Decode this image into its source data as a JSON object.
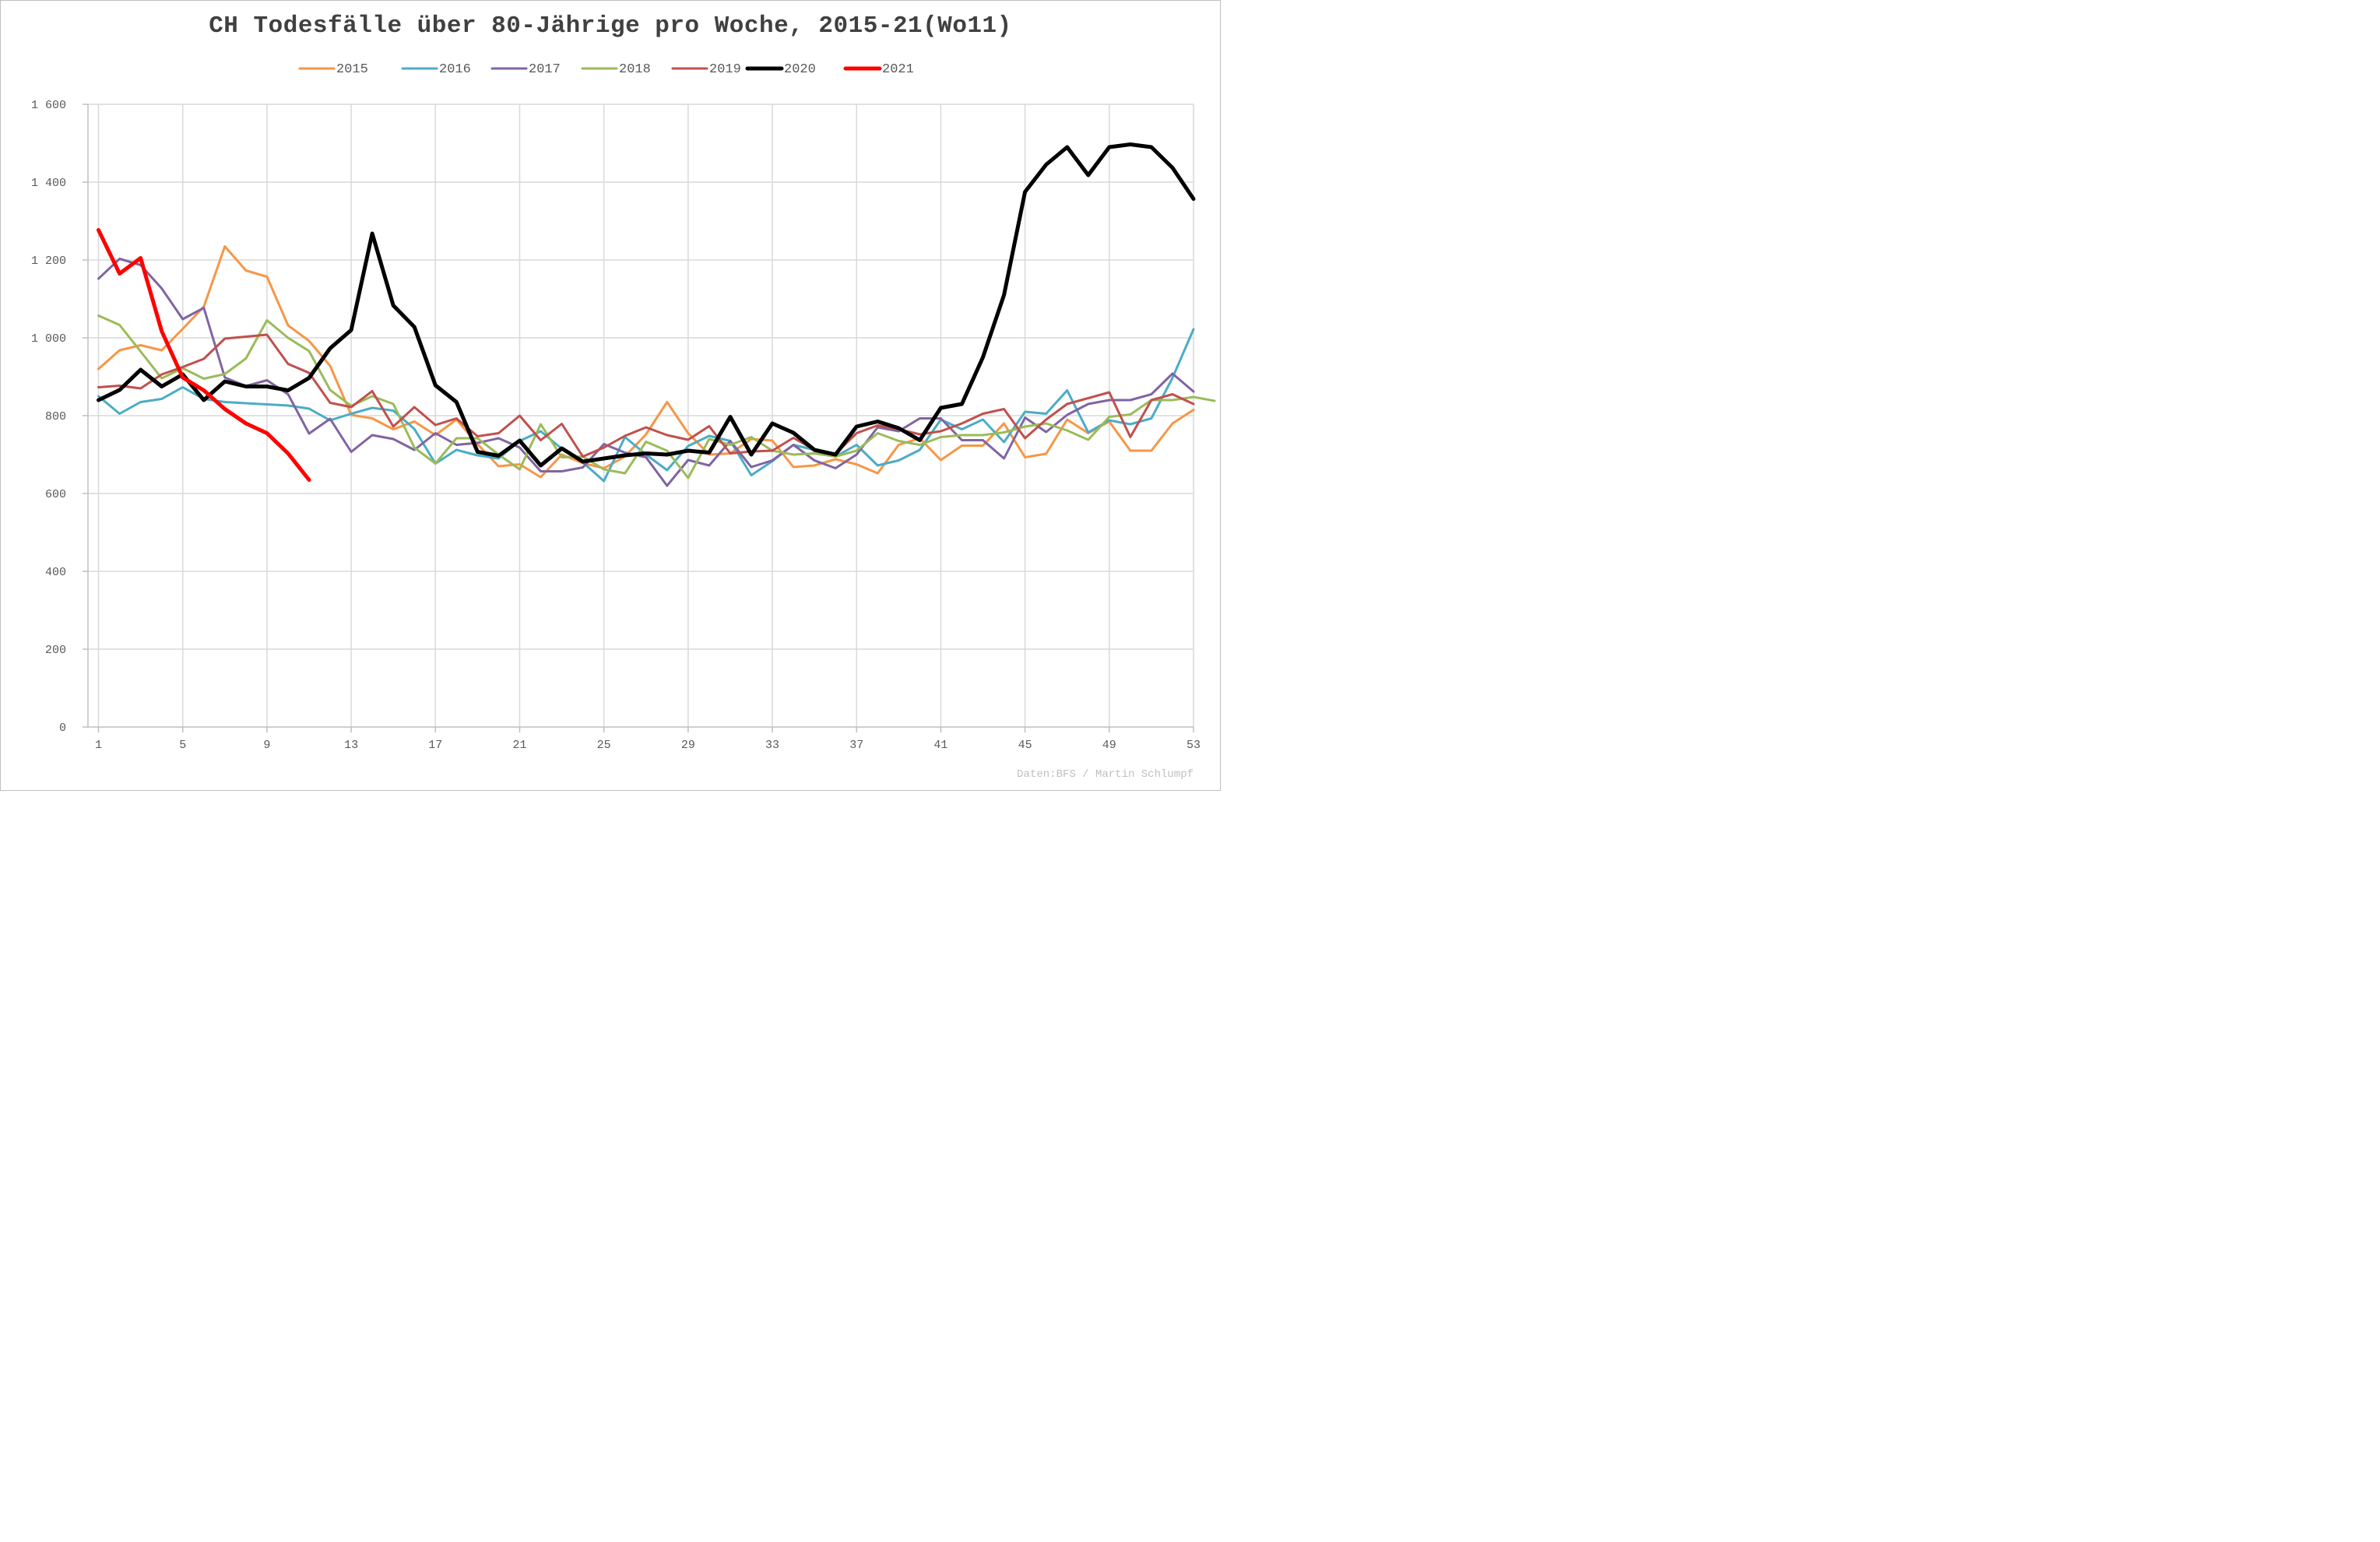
{
  "chart_data": {
    "type": "line",
    "title": "CH Todesfälle über 80-Jährige pro Woche, 2015-21(Wo11)",
    "xlabel": "",
    "ylabel": "",
    "x_ticks": [
      "1",
      "5",
      "9",
      "13",
      "17",
      "21",
      "25",
      "29",
      "33",
      "37",
      "41",
      "45",
      "49",
      "53"
    ],
    "y_ticks": [
      "0",
      "200",
      "400",
      "600",
      "800",
      "1 000",
      "1 200",
      "1 400",
      "1 600"
    ],
    "xlim": [
      1,
      53
    ],
    "ylim": [
      0,
      1600
    ],
    "grid": true,
    "legend_position": "top",
    "series": [
      {
        "name": "2015",
        "color": "#f79646",
        "width": 3,
        "values": [
          920,
          968,
          981,
          968,
          1023,
          1080,
          1235,
          1173,
          1157,
          1032,
          992,
          928,
          802,
          793,
          765,
          785,
          750,
          790,
          727,
          670,
          675,
          642,
          700,
          678,
          665,
          695,
          752,
          835,
          755,
          700,
          703,
          740,
          736,
          668,
          672,
          688,
          675,
          652,
          725,
          742,
          686,
          723,
          723,
          780,
          693,
          702,
          790,
          755,
          785,
          710,
          710,
          780,
          815
        ]
      },
      {
        "name": "2016",
        "color": "#4bacc6",
        "width": 3,
        "values": [
          850,
          805,
          835,
          843,
          873,
          843,
          835,
          832,
          829,
          826,
          818,
          788,
          805,
          820,
          813,
          766,
          677,
          712,
          698,
          690,
          735,
          760,
          715,
          680,
          632,
          745,
          700,
          660,
          722,
          748,
          735,
          647,
          683,
          725,
          712,
          695,
          725,
          672,
          685,
          712,
          790,
          765,
          790,
          732,
          810,
          805,
          865,
          757,
          788,
          778,
          793,
          897,
          1022
        ]
      },
      {
        "name": "2017",
        "color": "#8064a2",
        "width": 3,
        "values": [
          1152,
          1203,
          1187,
          1127,
          1048,
          1077,
          898,
          876,
          891,
          855,
          754,
          792,
          707,
          750,
          740,
          712,
          755,
          725,
          730,
          742,
          718,
          657,
          657,
          667,
          727,
          705,
          693,
          620,
          686,
          672,
          735,
          668,
          685,
          725,
          685,
          665,
          700,
          770,
          760,
          793,
          793,
          737,
          737,
          690,
          795,
          758,
          802,
          830,
          840,
          840,
          855,
          908,
          862
        ]
      },
      {
        "name": "2018",
        "color": "#9bbb59",
        "width": 3,
        "values": [
          1057,
          1033,
          965,
          896,
          922,
          895,
          907,
          947,
          1045,
          1000,
          966,
          866,
          825,
          850,
          830,
          718,
          677,
          742,
          742,
          700,
          662,
          778,
          693,
          695,
          662,
          652,
          733,
          710,
          640,
          740,
          725,
          745,
          710,
          700,
          703,
          695,
          710,
          755,
          735,
          725,
          745,
          750,
          750,
          757,
          772,
          780,
          762,
          738,
          797,
          803,
          840,
          840,
          848,
          838
        ]
      },
      {
        "name": "2019",
        "color": "#c0504d",
        "width": 3,
        "values": [
          873,
          877,
          870,
          906,
          925,
          946,
          998,
          1003,
          1008,
          933,
          910,
          833,
          822,
          863,
          772,
          822,
          776,
          793,
          747,
          755,
          800,
          737,
          779,
          695,
          718,
          748,
          770,
          750,
          738,
          773,
          703,
          708,
          710,
          743,
          712,
          702,
          755,
          775,
          765,
          752,
          760,
          780,
          805,
          817,
          742,
          790,
          830,
          845,
          860,
          745,
          840,
          855,
          830
        ]
      },
      {
        "name": "2020",
        "color": "#000000",
        "width": 5,
        "values": [
          840,
          866,
          918,
          875,
          906,
          840,
          888,
          875,
          875,
          865,
          897,
          973,
          1020,
          1268,
          1083,
          1028,
          878,
          835,
          707,
          697,
          736,
          672,
          716,
          682,
          690,
          698,
          703,
          700,
          710,
          705,
          797,
          700,
          780,
          756,
          712,
          700,
          772,
          785,
          768,
          737,
          820,
          830,
          950,
          1110,
          1375,
          1445,
          1490,
          1418,
          1490,
          1497,
          1490,
          1437,
          1357
        ]
      },
      {
        "name": "2021",
        "color": "#ff0000",
        "width": 5,
        "values": [
          1277,
          1165,
          1205,
          1017,
          898,
          865,
          817,
          780,
          755,
          703,
          635
        ]
      }
    ]
  },
  "source": "Daten:BFS / Martin Schlumpf"
}
